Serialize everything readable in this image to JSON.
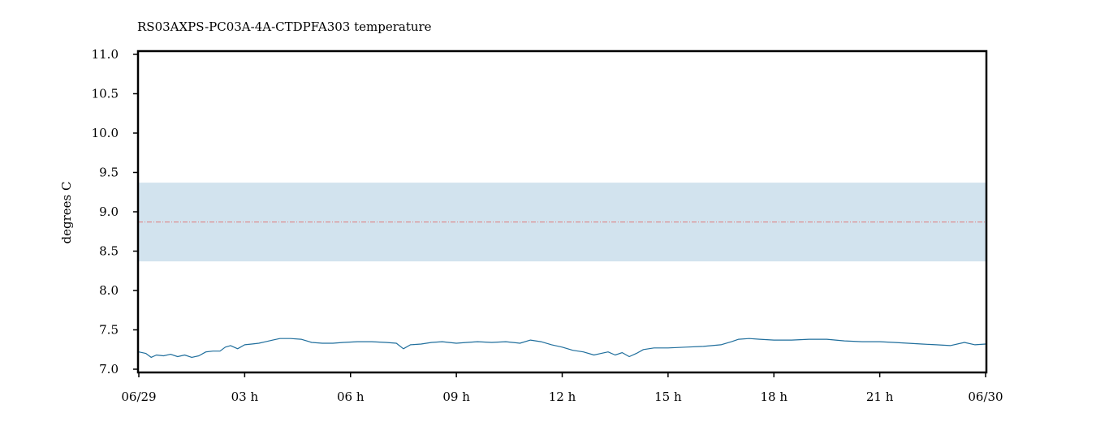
{
  "chart_data": {
    "type": "line",
    "title": "RS03AXPS-PC03A-4A-CTDPFA303 temperature",
    "xlabel": "",
    "ylabel": "degrees C",
    "ylim": [
      7.0,
      11.0
    ],
    "xlim_hours": [
      0,
      24
    ],
    "y_ticks": [
      "7.0",
      "7.5",
      "8.0",
      "8.5",
      "9.0",
      "9.5",
      "10.0",
      "10.5",
      "11.0"
    ],
    "x_ticks": [
      {
        "hour": 0,
        "label": "06/29"
      },
      {
        "hour": 3,
        "label": "03 h"
      },
      {
        "hour": 6,
        "label": "06 h"
      },
      {
        "hour": 9,
        "label": "09 h"
      },
      {
        "hour": 12,
        "label": "12 h"
      },
      {
        "hour": 15,
        "label": "15 h"
      },
      {
        "hour": 18,
        "label": "18 h"
      },
      {
        "hour": 21,
        "label": "21 h"
      },
      {
        "hour": 24,
        "label": "06/30"
      }
    ],
    "grid": false,
    "band": {
      "low": 8.37,
      "high": 9.37,
      "color": "#d2e3ee"
    },
    "mean_line": {
      "value": 8.87,
      "color": "#e07a7a"
    },
    "series": [
      {
        "color": "#1f6e9c",
        "x": [
          0,
          0.2,
          0.35,
          0.5,
          0.7,
          0.9,
          1.1,
          1.3,
          1.5,
          1.7,
          1.9,
          2.1,
          2.3,
          2.45,
          2.6,
          2.8,
          3.0,
          3.2,
          3.4,
          3.6,
          3.8,
          4.0,
          4.3,
          4.6,
          4.9,
          5.2,
          5.5,
          5.8,
          6.2,
          6.6,
          7.0,
          7.3,
          7.5,
          7.7,
          8.0,
          8.3,
          8.6,
          9.0,
          9.3,
          9.6,
          10.0,
          10.4,
          10.8,
          11.1,
          11.4,
          11.7,
          12.0,
          12.3,
          12.6,
          12.9,
          13.1,
          13.3,
          13.5,
          13.7,
          13.9,
          14.1,
          14.3,
          14.6,
          15.0,
          15.5,
          16.0,
          16.5,
          16.8,
          17.0,
          17.3,
          17.6,
          18.0,
          18.5,
          19.0,
          19.5,
          20.0,
          20.5,
          21.0,
          21.4,
          21.8,
          22.2,
          22.6,
          23.0,
          23.4,
          23.7,
          24.0
        ],
        "y": [
          7.22,
          7.2,
          7.15,
          7.18,
          7.17,
          7.19,
          7.16,
          7.18,
          7.15,
          7.17,
          7.22,
          7.23,
          7.23,
          7.28,
          7.3,
          7.26,
          7.31,
          7.32,
          7.33,
          7.35,
          7.37,
          7.39,
          7.39,
          7.38,
          7.34,
          7.33,
          7.33,
          7.34,
          7.35,
          7.35,
          7.34,
          7.33,
          7.26,
          7.31,
          7.32,
          7.34,
          7.35,
          7.33,
          7.34,
          7.35,
          7.34,
          7.35,
          7.33,
          7.37,
          7.35,
          7.31,
          7.28,
          7.24,
          7.22,
          7.18,
          7.2,
          7.22,
          7.18,
          7.21,
          7.16,
          7.2,
          7.25,
          7.27,
          7.27,
          7.28,
          7.29,
          7.31,
          7.35,
          7.38,
          7.39,
          7.38,
          7.37,
          7.37,
          7.38,
          7.38,
          7.36,
          7.35,
          7.35,
          7.34,
          7.33,
          7.32,
          7.31,
          7.3,
          7.34,
          7.31,
          7.32
        ]
      }
    ]
  }
}
